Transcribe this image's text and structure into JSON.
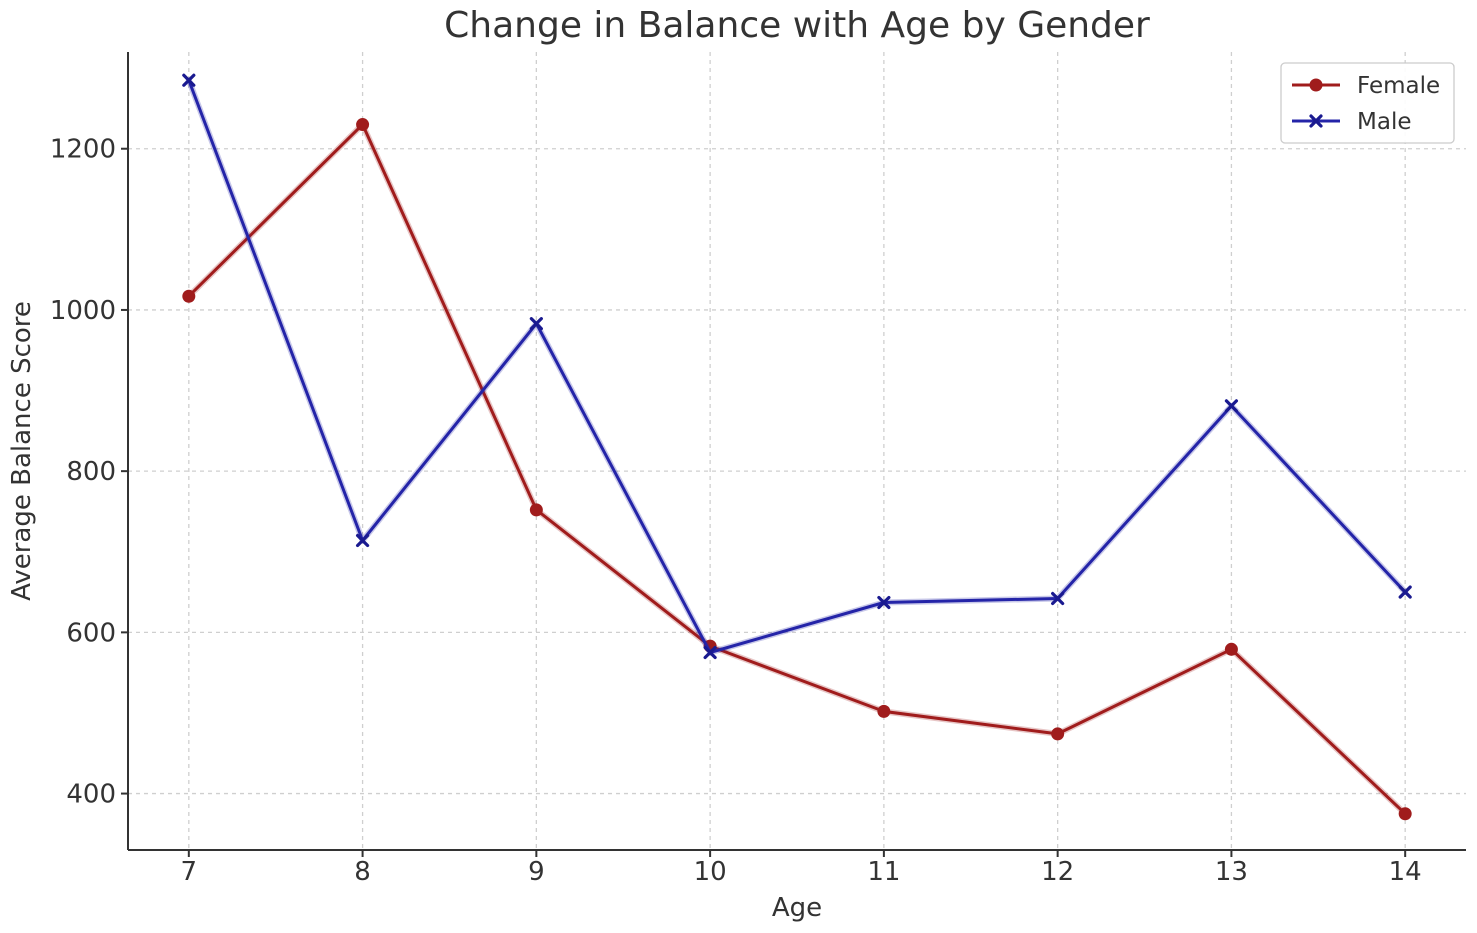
{
  "chart_data": {
    "type": "line",
    "title": "Change in Balance with Age by Gender",
    "xlabel": "Age",
    "ylabel": "Average Balance Score",
    "x": [
      7,
      8,
      9,
      10,
      11,
      12,
      13,
      14
    ],
    "xlim": [
      6.65,
      14.35
    ],
    "ylim": [
      330,
      1320
    ],
    "yticks": [
      400,
      600,
      800,
      1000,
      1200
    ],
    "grid": true,
    "legend_position": "top-right",
    "series": [
      {
        "name": "Female",
        "color": "#a01c1c",
        "marker": "circle",
        "values": [
          1017,
          1230,
          752,
          583,
          502,
          474,
          579,
          375
        ]
      },
      {
        "name": "Male",
        "color": "#2424a8",
        "marker": "x",
        "values": [
          1285,
          714,
          983,
          575,
          637,
          642,
          881,
          650
        ]
      }
    ]
  }
}
